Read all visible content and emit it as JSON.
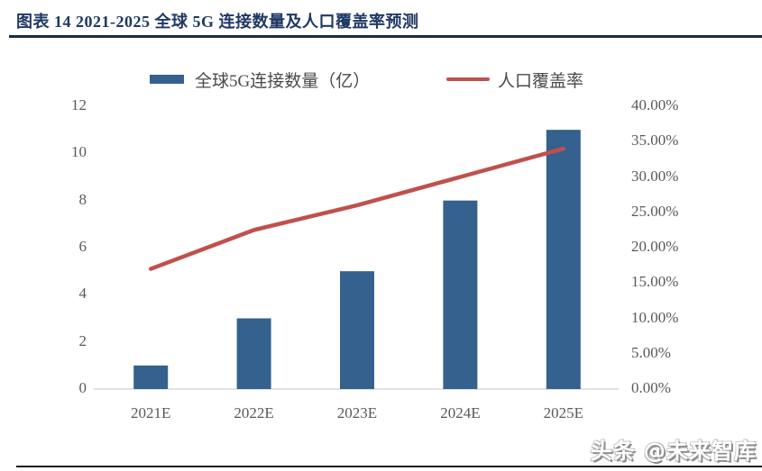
{
  "page": {
    "title": "图表 14 2021-2025 全球 5G 连接数量及人口覆盖率预测",
    "watermark": "头条 @未来智库"
  },
  "legend": {
    "bar_label": "全球5G连接数量（亿）",
    "line_label": "人口覆盖率"
  },
  "colors": {
    "bar": "#35618F",
    "line": "#C0504D",
    "title": "#1F3864",
    "axis_text": "#595959",
    "baseline": "#D9D9D9",
    "top_rule": "#1B2A4A",
    "bottom_rule": "#1A1A1A"
  },
  "chart_data": {
    "type": "bar",
    "title": "2021-2025 全球 5G 连接数量及人口覆盖率预测",
    "categories": [
      "2021E",
      "2022E",
      "2023E",
      "2024E",
      "2025E"
    ],
    "series": [
      {
        "name": "全球5G连接数量（亿）",
        "type": "bar",
        "axis": "left",
        "values": [
          1,
          3,
          5,
          8,
          11
        ]
      },
      {
        "name": "人口覆盖率",
        "type": "line",
        "axis": "right",
        "values_percent": [
          17,
          22.5,
          26,
          30,
          34
        ]
      }
    ],
    "left_axis": {
      "min": 0,
      "max": 12,
      "ticks": [
        "0",
        "2",
        "4",
        "6",
        "8",
        "10",
        "12"
      ]
    },
    "right_axis": {
      "min": 0,
      "max": 40,
      "ticks": [
        "0.00%",
        "5.00%",
        "10.00%",
        "15.00%",
        "20.00%",
        "25.00%",
        "30.00%",
        "35.00%",
        "40.00%"
      ]
    },
    "grid": false,
    "legend_position": "top"
  }
}
